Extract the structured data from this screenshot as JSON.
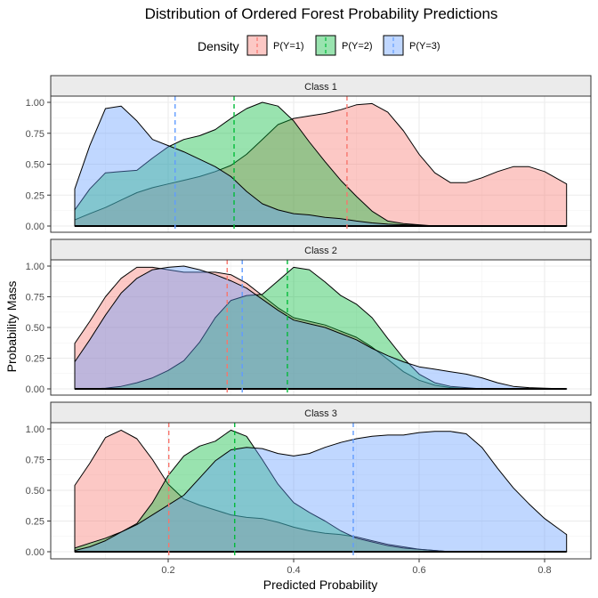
{
  "chart_data": {
    "type": "area",
    "title": "Distribution of Ordered Forest Probability Predictions",
    "xlabel": "Predicted Probability",
    "ylabel": "Probability Mass",
    "xlim": [
      0.0,
      0.87
    ],
    "ylim": [
      0,
      1.1
    ],
    "x_ticks": [
      0.2,
      0.4,
      0.6,
      0.8
    ],
    "x_tick_labels": [
      "0.2",
      "0.4",
      "0.6",
      "0.8"
    ],
    "y_ticks": [
      0,
      0.25,
      0.5,
      0.75,
      1.0
    ],
    "y_tick_labels": [
      "0.00",
      "0.25",
      "0.50",
      "0.75",
      "1.00"
    ],
    "grid": true,
    "legend": {
      "title": "Density",
      "position": "top",
      "entries": [
        "P(Y=1)",
        "P(Y=2)",
        "P(Y=3)"
      ]
    },
    "series_colors": [
      "#F8766D",
      "#00BA38",
      "#619CFF"
    ],
    "x": [
      0.051,
      0.075,
      0.1,
      0.125,
      0.15,
      0.175,
      0.2,
      0.225,
      0.25,
      0.275,
      0.3,
      0.325,
      0.35,
      0.375,
      0.4,
      0.425,
      0.45,
      0.475,
      0.5,
      0.525,
      0.55,
      0.575,
      0.6,
      0.625,
      0.65,
      0.675,
      0.7,
      0.725,
      0.75,
      0.775,
      0.8,
      0.835
    ],
    "panels": [
      {
        "strip": "Class 1",
        "series": [
          {
            "name": "P(Y=1)",
            "mean": 0.485,
            "values": [
              0.05,
              0.1,
              0.15,
              0.21,
              0.27,
              0.31,
              0.34,
              0.37,
              0.4,
              0.44,
              0.49,
              0.58,
              0.7,
              0.82,
              0.87,
              0.89,
              0.91,
              0.94,
              0.98,
              0.99,
              0.92,
              0.77,
              0.58,
              0.43,
              0.35,
              0.35,
              0.39,
              0.44,
              0.48,
              0.48,
              0.44,
              0.34
            ]
          },
          {
            "name": "P(Y=2)",
            "mean": 0.305,
            "values": [
              0.13,
              0.3,
              0.43,
              0.44,
              0.45,
              0.55,
              0.64,
              0.7,
              0.73,
              0.78,
              0.87,
              0.95,
              1.0,
              0.97,
              0.85,
              0.68,
              0.52,
              0.37,
              0.24,
              0.12,
              0.04,
              0.02,
              0.01,
              0,
              0,
              0,
              0,
              0,
              0,
              0,
              0,
              0
            ]
          },
          {
            "name": "P(Y=3)",
            "mean": 0.211,
            "values": [
              0.3,
              0.65,
              0.95,
              0.97,
              0.85,
              0.7,
              0.65,
              0.6,
              0.54,
              0.48,
              0.4,
              0.28,
              0.18,
              0.13,
              0.1,
              0.09,
              0.07,
              0.06,
              0.04,
              0.025,
              0.015,
              0.01,
              0.005,
              0,
              0,
              0,
              0,
              0,
              0,
              0,
              0,
              0
            ]
          }
        ]
      },
      {
        "strip": "Class 2",
        "series": [
          {
            "name": "P(Y=1)",
            "mean": 0.294,
            "values": [
              0.37,
              0.55,
              0.75,
              0.9,
              0.99,
              0.99,
              0.97,
              0.95,
              0.95,
              0.95,
              0.93,
              0.86,
              0.76,
              0.66,
              0.58,
              0.55,
              0.52,
              0.47,
              0.42,
              0.34,
              0.24,
              0.14,
              0.07,
              0.03,
              0.01,
              0,
              0,
              0,
              0,
              0,
              0,
              0
            ]
          },
          {
            "name": "P(Y=2)",
            "mean": 0.39,
            "values": [
              0,
              0,
              0.005,
              0.02,
              0.05,
              0.09,
              0.15,
              0.23,
              0.38,
              0.58,
              0.72,
              0.76,
              0.77,
              0.88,
              0.99,
              0.97,
              0.87,
              0.76,
              0.69,
              0.58,
              0.41,
              0.25,
              0.12,
              0.05,
              0.02,
              0.01,
              0,
              0,
              0,
              0,
              0,
              0
            ]
          },
          {
            "name": "P(Y=3)",
            "mean": 0.318,
            "values": [
              0.22,
              0.4,
              0.6,
              0.78,
              0.9,
              0.97,
              0.99,
              1.0,
              0.97,
              0.93,
              0.88,
              0.82,
              0.73,
              0.64,
              0.56,
              0.53,
              0.5,
              0.45,
              0.4,
              0.33,
              0.27,
              0.22,
              0.18,
              0.16,
              0.14,
              0.12,
              0.09,
              0.05,
              0.02,
              0.01,
              0.005,
              0
            ]
          }
        ]
      },
      {
        "strip": "Class 3",
        "series": [
          {
            "name": "P(Y=1)",
            "mean": 0.201,
            "values": [
              0.54,
              0.72,
              0.93,
              0.99,
              0.92,
              0.75,
              0.55,
              0.43,
              0.38,
              0.34,
              0.3,
              0.28,
              0.27,
              0.24,
              0.2,
              0.17,
              0.15,
              0.14,
              0.12,
              0.09,
              0.06,
              0.04,
              0.02,
              0.01,
              0,
              0,
              0,
              0,
              0,
              0,
              0,
              0
            ]
          },
          {
            "name": "P(Y=2)",
            "mean": 0.306,
            "values": [
              0.03,
              0.07,
              0.11,
              0.16,
              0.23,
              0.4,
              0.62,
              0.78,
              0.86,
              0.9,
              0.99,
              0.94,
              0.75,
              0.55,
              0.4,
              0.32,
              0.25,
              0.17,
              0.11,
              0.08,
              0.05,
              0.03,
              0.02,
              0.01,
              0,
              0,
              0,
              0,
              0,
              0,
              0,
              0
            ]
          },
          {
            "name": "P(Y=3)",
            "mean": 0.495,
            "values": [
              0.01,
              0.04,
              0.09,
              0.16,
              0.22,
              0.3,
              0.38,
              0.46,
              0.6,
              0.74,
              0.83,
              0.85,
              0.84,
              0.8,
              0.78,
              0.8,
              0.85,
              0.89,
              0.92,
              0.94,
              0.95,
              0.95,
              0.97,
              0.98,
              0.98,
              0.96,
              0.85,
              0.68,
              0.52,
              0.39,
              0.27,
              0.14
            ]
          }
        ]
      }
    ]
  }
}
